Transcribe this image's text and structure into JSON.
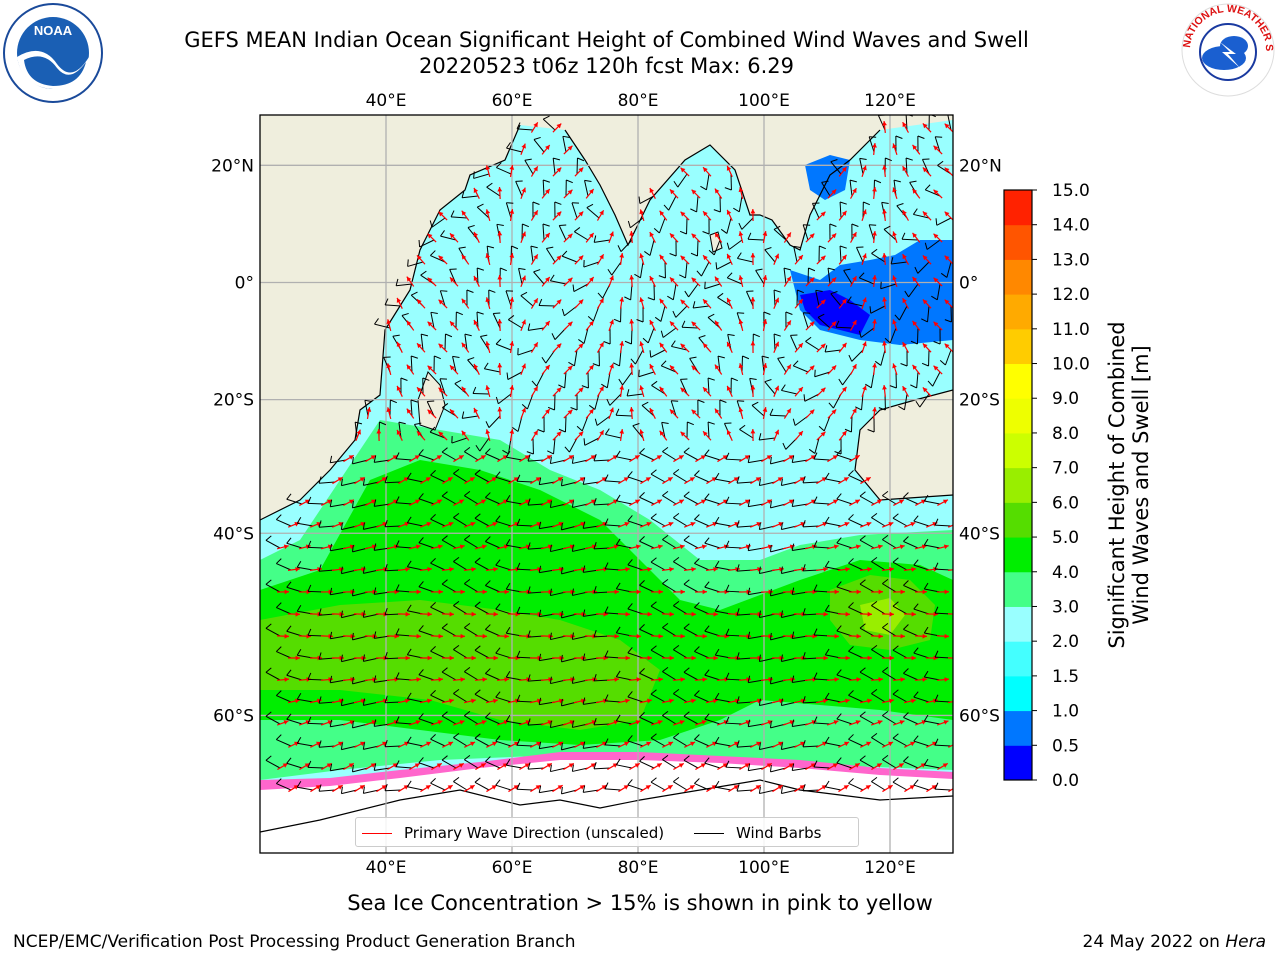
{
  "title": {
    "line1": "GEFS MEAN Indian Ocean Significant Height of Combined Wind Waves and Swell",
    "line2": "20220523 t06z 120h fcst   Max: 6.29"
  },
  "map": {
    "lon_ticks": [
      "40°E",
      "60°E",
      "80°E",
      "100°E",
      "120°E"
    ],
    "lat_ticks": [
      "20°N",
      "0°",
      "20°S",
      "40°S",
      "60°S"
    ],
    "lon_values": [
      40,
      60,
      80,
      100,
      120
    ],
    "lat_values": [
      20,
      0,
      -20,
      -40,
      -60
    ],
    "extent": {
      "lon_min": 20,
      "lon_max": 130,
      "lat_min": -70,
      "lat_max": 28
    },
    "colors": {
      "land": "#efeedd",
      "ocean_low": "#99ffff",
      "ice": "#ffffff",
      "grid": "#b0b0b0"
    }
  },
  "colorbar": {
    "label_line1": "Significant Height of Combined",
    "label_line2": "Wind Waves and Swell [m]",
    "ticks": [
      "0.0",
      "0.5",
      "1.0",
      "1.5",
      "2.0",
      "3.0",
      "4.0",
      "5.0",
      "6.0",
      "7.0",
      "8.0",
      "9.0",
      "10.0",
      "11.0",
      "12.0",
      "13.0",
      "14.0",
      "15.0"
    ],
    "colors": [
      "#0000ff",
      "#0077ff",
      "#00ffff",
      "#44ffff",
      "#99ffff",
      "#44ff88",
      "#00ee00",
      "#55dd00",
      "#99ee00",
      "#ccff00",
      "#eeff00",
      "#ffff00",
      "#ffcc00",
      "#ffaa00",
      "#ff8800",
      "#ff5500",
      "#ff2200"
    ]
  },
  "legend": {
    "wave_direction": "Primary Wave Direction (unscaled)",
    "wind_barbs": "Wind Barbs",
    "wave_color": "#ff0000",
    "barb_color": "#000000"
  },
  "ice_note": "Sea Ice Concentration > 15% is shown in pink to yellow",
  "footer": {
    "left": "NCEP/EMC/Verification Post Processing Product Generation Branch",
    "right_date": "24 May 2022 on ",
    "right_machine": "Hera"
  },
  "logos": {
    "noaa_text": "NOAA",
    "nws_text": "NATIONAL WEATHER SERVICE"
  }
}
